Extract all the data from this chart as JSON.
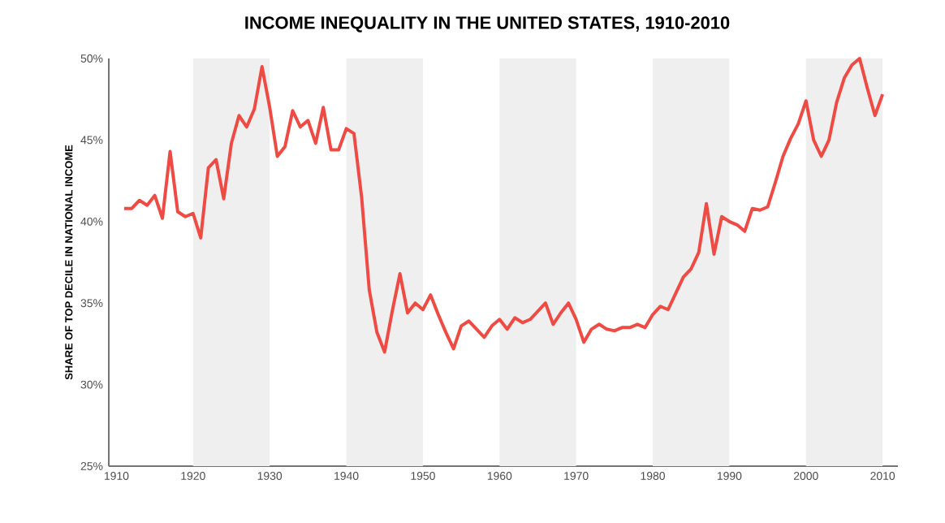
{
  "chart_data": {
    "type": "line",
    "title": "INCOME INEQUALITY IN THE UNITED STATES, 1910-2010",
    "ylabel": "SHARE OF TOP DECILE IN NATIONAL INCOME",
    "x": [
      1911,
      1912,
      1913,
      1914,
      1915,
      1916,
      1917,
      1918,
      1919,
      1920,
      1921,
      1922,
      1923,
      1924,
      1925,
      1926,
      1927,
      1928,
      1929,
      1930,
      1931,
      1932,
      1933,
      1934,
      1935,
      1936,
      1937,
      1938,
      1939,
      1940,
      1941,
      1942,
      1943,
      1944,
      1945,
      1946,
      1947,
      1948,
      1949,
      1950,
      1951,
      1952,
      1953,
      1954,
      1955,
      1956,
      1957,
      1958,
      1959,
      1960,
      1961,
      1962,
      1963,
      1964,
      1965,
      1966,
      1967,
      1968,
      1969,
      1970,
      1971,
      1972,
      1973,
      1974,
      1975,
      1976,
      1977,
      1978,
      1979,
      1980,
      1981,
      1982,
      1983,
      1984,
      1985,
      1986,
      1987,
      1988,
      1989,
      1990,
      1991,
      1992,
      1993,
      1994,
      1995,
      1996,
      1997,
      1998,
      1999,
      2000,
      2001,
      2002,
      2003,
      2004,
      2005,
      2006,
      2007,
      2008,
      2009,
      2010
    ],
    "series": [
      {
        "color": "#ef4b45",
        "values": [
          40.8,
          40.8,
          41.3,
          41.0,
          41.6,
          40.2,
          44.3,
          40.6,
          40.3,
          40.5,
          39.0,
          43.3,
          43.8,
          41.4,
          44.8,
          46.5,
          45.8,
          46.9,
          49.5,
          47.0,
          44.0,
          44.6,
          46.8,
          45.8,
          46.2,
          44.8,
          47.0,
          44.4,
          44.4,
          45.7,
          45.4,
          41.5,
          35.8,
          33.2,
          32.0,
          34.5,
          36.8,
          34.4,
          35.0,
          34.6,
          35.5,
          34.3,
          33.2,
          32.2,
          33.6,
          33.9,
          33.4,
          32.9,
          33.6,
          34.0,
          33.4,
          34.1,
          33.8,
          34.0,
          34.5,
          35.0,
          33.7,
          34.4,
          35.0,
          34.0,
          32.6,
          33.4,
          33.7,
          33.4,
          33.3,
          33.5,
          33.5,
          33.7,
          33.5,
          34.3,
          34.8,
          34.6,
          35.6,
          36.6,
          37.1,
          38.1,
          41.1,
          38.0,
          40.3,
          40.0,
          39.8,
          39.4,
          40.8,
          40.7,
          40.9,
          42.4,
          44.0,
          45.1,
          46.0,
          47.4,
          45.0,
          44.0,
          45.0,
          47.3,
          48.8,
          49.6,
          50.0,
          48.2,
          46.5,
          47.8
        ]
      }
    ],
    "xlim": [
      1909,
      2012
    ],
    "ylim": [
      25,
      50
    ],
    "xticks": [
      1910,
      1920,
      1930,
      1940,
      1950,
      1960,
      1970,
      1980,
      1990,
      2000,
      2010
    ],
    "yticks": [
      {
        "value": 25,
        "label": "25%"
      },
      {
        "value": 30,
        "label": "30%"
      },
      {
        "value": 35,
        "label": "35%"
      },
      {
        "value": 40,
        "label": "40%"
      },
      {
        "value": 45,
        "label": "45%"
      },
      {
        "value": 50,
        "label": "50%"
      }
    ],
    "bands": [
      {
        "axis": "x",
        "from": 1920,
        "to": 1930,
        "color": "#efefef"
      },
      {
        "axis": "x",
        "from": 1940,
        "to": 1950,
        "color": "#efefef"
      },
      {
        "axis": "x",
        "from": 1960,
        "to": 1970,
        "color": "#efefef"
      },
      {
        "axis": "x",
        "from": 1980,
        "to": 1990,
        "color": "#efefef"
      },
      {
        "axis": "x",
        "from": 2000,
        "to": 2010,
        "color": "#efefef"
      }
    ],
    "line_style": "solid"
  }
}
